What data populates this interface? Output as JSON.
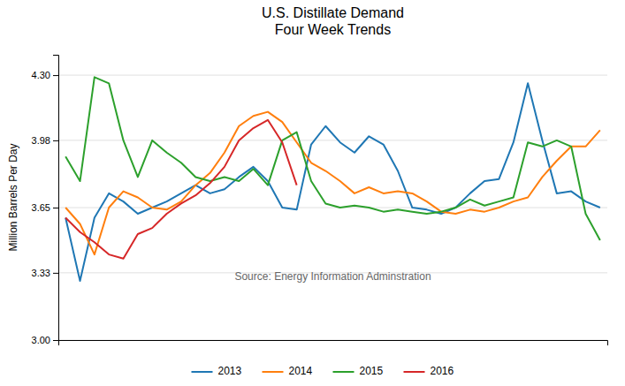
{
  "chart_data": {
    "type": "line",
    "title": "U.S. Distillate Demand\nFour Week Trends",
    "y_label": "Million Barrels Per Day",
    "annotation": "Source: Energy Information Adminstration",
    "categories": [
      null,
      null,
      null,
      null,
      null,
      null,
      null,
      null,
      null,
      null,
      null,
      null,
      null,
      null,
      null,
      null,
      null,
      null,
      null,
      null,
      null,
      null,
      null,
      null,
      null,
      null,
      null,
      null,
      null,
      null,
      null,
      null,
      null,
      null,
      null,
      null,
      null,
      null
    ],
    "series": [
      {
        "name": "2013",
        "values": [
          3.6,
          3.29,
          3.6,
          3.72,
          3.68,
          3.62,
          3.65,
          3.68,
          3.72,
          3.76,
          3.72,
          3.74,
          3.8,
          3.85,
          3.78,
          3.65,
          3.64,
          3.96,
          4.05,
          3.97,
          3.92,
          4.0,
          3.96,
          3.83,
          3.65,
          3.64,
          3.62,
          3.65,
          3.72,
          3.78,
          3.79,
          3.97,
          4.26,
          3.98,
          3.72,
          3.73,
          3.68,
          3.65
        ]
      },
      {
        "name": "2014",
        "values": [
          3.65,
          3.57,
          3.42,
          3.65,
          3.73,
          3.7,
          3.65,
          3.64,
          3.68,
          3.76,
          3.82,
          3.92,
          4.05,
          4.1,
          4.12,
          4.07,
          3.97,
          3.87,
          3.83,
          3.78,
          3.72,
          3.75,
          3.72,
          3.73,
          3.72,
          3.68,
          3.63,
          3.62,
          3.64,
          3.63,
          3.65,
          3.68,
          3.7,
          3.8,
          3.88,
          3.95,
          3.95,
          4.03
        ]
      },
      {
        "name": "2015",
        "values": [
          3.9,
          3.78,
          4.29,
          4.26,
          3.98,
          3.8,
          3.98,
          3.92,
          3.87,
          3.8,
          3.78,
          3.8,
          3.78,
          3.84,
          3.76,
          3.98,
          4.02,
          3.78,
          3.67,
          3.65,
          3.66,
          3.65,
          3.63,
          3.64,
          3.63,
          3.62,
          3.63,
          3.65,
          3.69,
          3.66,
          3.68,
          3.7,
          3.97,
          3.95,
          3.98,
          3.95,
          3.62,
          3.49
        ]
      },
      {
        "name": "2016",
        "values": [
          3.6,
          3.53,
          3.48,
          3.42,
          3.4,
          3.52,
          3.55,
          3.62,
          3.67,
          3.71,
          3.77,
          3.85,
          3.98,
          4.04,
          4.08,
          3.97,
          3.76,
          null,
          null,
          null,
          null,
          null,
          null,
          null,
          null,
          null,
          null,
          null,
          null,
          null,
          null,
          null,
          null,
          null,
          null,
          null,
          null,
          null
        ]
      }
    ],
    "ylim": [
      3.0,
      4.4
    ],
    "yticks": [
      {
        "value": 3.0,
        "label": "3.00"
      },
      3.33,
      3.65,
      3.98,
      {
        "value": 4.3,
        "label": "4.30"
      }
    ],
    "grid": true,
    "legend": "bottom",
    "tick_labels": "y"
  }
}
